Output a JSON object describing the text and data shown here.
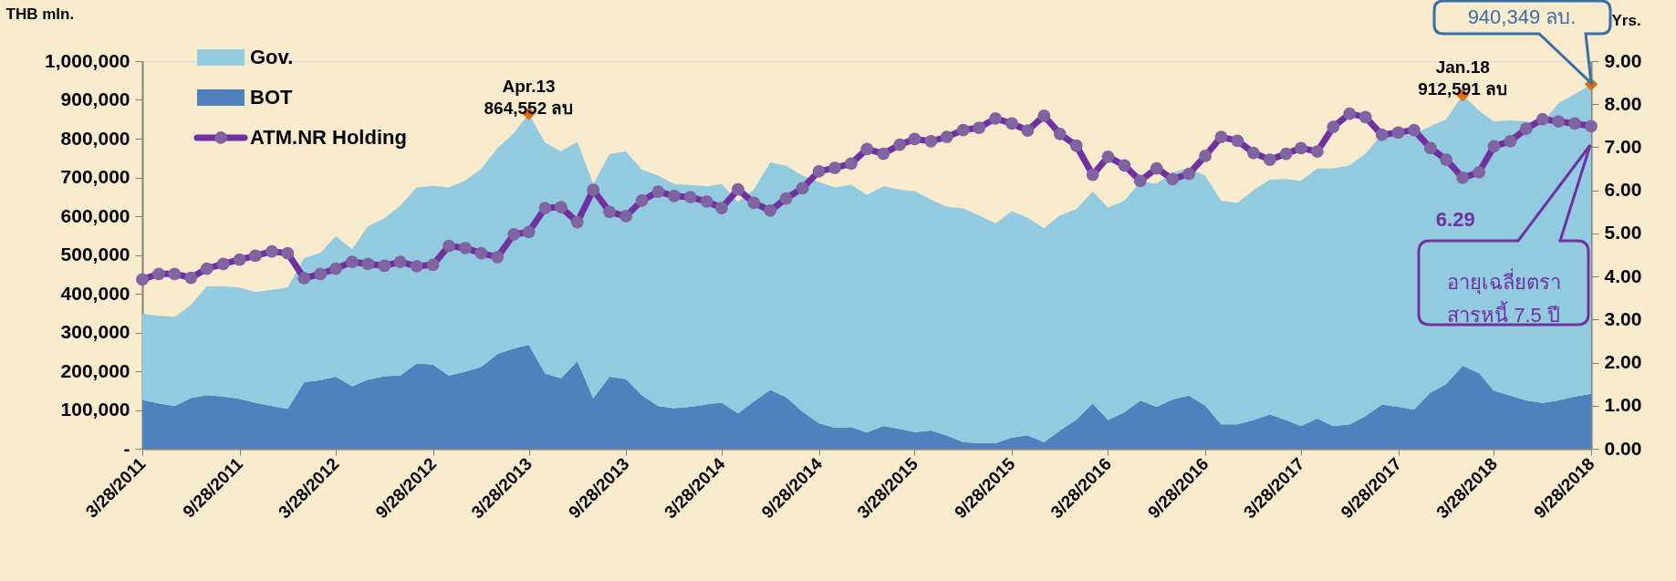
{
  "chart_data": {
    "type": "area",
    "stacked": true,
    "ylabel": "THB mln.",
    "y2label": "Yrs.",
    "x": [
      "2011-03-28",
      "2011-04-28",
      "2011-05-28",
      "2011-06-28",
      "2011-07-28",
      "2011-08-28",
      "2011-09-28",
      "2011-10-28",
      "2011-11-28",
      "2011-12-28",
      "2012-01-28",
      "2012-02-28",
      "2012-03-28",
      "2012-04-28",
      "2012-05-28",
      "2012-06-28",
      "2012-07-28",
      "2012-08-28",
      "2012-09-28",
      "2012-10-28",
      "2012-11-28",
      "2012-12-28",
      "2013-01-28",
      "2013-02-28",
      "2013-03-28",
      "2013-04-28",
      "2013-05-28",
      "2013-06-28",
      "2013-07-28",
      "2013-08-28",
      "2013-09-28",
      "2013-10-28",
      "2013-11-28",
      "2013-12-28",
      "2014-01-28",
      "2014-02-28",
      "2014-03-28",
      "2014-04-28",
      "2014-05-28",
      "2014-06-28",
      "2014-07-28",
      "2014-08-28",
      "2014-09-28",
      "2014-10-28",
      "2014-11-28",
      "2014-12-28",
      "2015-01-28",
      "2015-02-28",
      "2015-03-28",
      "2015-04-28",
      "2015-05-28",
      "2015-06-28",
      "2015-07-28",
      "2015-08-28",
      "2015-09-28",
      "2015-10-28",
      "2015-11-28",
      "2015-12-28",
      "2016-01-28",
      "2016-02-28",
      "2016-03-28",
      "2016-04-28",
      "2016-05-28",
      "2016-06-28",
      "2016-07-28",
      "2016-08-28",
      "2016-09-28",
      "2016-10-28",
      "2016-11-28",
      "2016-12-28",
      "2017-01-28",
      "2017-02-28",
      "2017-03-28",
      "2017-04-28",
      "2017-05-28",
      "2017-06-28",
      "2017-07-28",
      "2017-08-28",
      "2017-09-28",
      "2017-10-28",
      "2017-11-28",
      "2017-12-28",
      "2018-01-28",
      "2018-02-28",
      "2018-03-28",
      "2018-04-28",
      "2018-05-28",
      "2018-06-28",
      "2018-07-28",
      "2018-08-28",
      "2018-09-28"
    ],
    "series": [
      {
        "name": "BOT",
        "color": "#4f81bd",
        "values": [
          126000,
          117000,
          110000,
          131000,
          138000,
          135000,
          129000,
          119000,
          110000,
          103000,
          171000,
          177000,
          186000,
          161000,
          178000,
          187000,
          189000,
          220000,
          217000,
          189000,
          199000,
          211000,
          245000,
          259000,
          268000,
          194000,
          182000,
          226000,
          130000,
          186000,
          180000,
          138000,
          110000,
          105000,
          108000,
          115000,
          119000,
          91000,
          122000,
          152000,
          133000,
          96000,
          66000,
          54000,
          56000,
          42000,
          59000,
          51000,
          43000,
          47000,
          34000,
          17000,
          14000,
          14000,
          29000,
          34000,
          17000,
          47000,
          75000,
          117000,
          74000,
          94000,
          124000,
          108000,
          127000,
          137000,
          111000,
          63000,
          63000,
          74000,
          88000,
          74000,
          58000,
          78000,
          58000,
          63000,
          84000,
          114000,
          108000,
          101000,
          145000,
          167000,
          214000,
          195000,
          150000,
          137000,
          125000,
          118000,
          125000,
          135000,
          142000
        ]
      },
      {
        "name": "Gov.",
        "color": "#92cbdf",
        "values": [
          222000,
          226000,
          230000,
          240000,
          281000,
          284000,
          287000,
          285000,
          300000,
          313000,
          321000,
          329000,
          362000,
          354000,
          396000,
          408000,
          438000,
          454000,
          461000,
          485000,
          493000,
          511000,
          531000,
          555000,
          597000,
          596000,
          585000,
          566000,
          553000,
          574000,
          587000,
          582000,
          595000,
          578000,
          572000,
          562000,
          564000,
          546000,
          547000,
          587000,
          597000,
          609000,
          622000,
          620000,
          625000,
          613000,
          618000,
          618000,
          621000,
          596000,
          590000,
          603000,
          588000,
          567000,
          584000,
          562000,
          552000,
          555000,
          543000,
          547000,
          548000,
          546000,
          565000,
          576000,
          586000,
          588000,
          593000,
          577000,
          571000,
          593000,
          606000,
          622000,
          633000,
          645000,
          665000,
          668000,
          677000,
          696000,
          699000,
          711000,
          687000,
          683000,
          699000,
          677000,
          694000,
          710000,
          719000,
          722000,
          766000,
          780000,
          798000
        ]
      },
      {
        "name": "ATM.NR Holding",
        "type": "line",
        "axis": "y2",
        "color": "#7030a0",
        "marker": "circle",
        "line_style": "solid",
        "values": [
          3.93,
          4.06,
          4.06,
          3.97,
          4.18,
          4.29,
          4.39,
          4.48,
          4.58,
          4.54,
          3.96,
          4.06,
          4.18,
          4.34,
          4.29,
          4.25,
          4.34,
          4.24,
          4.27,
          4.71,
          4.66,
          4.54,
          4.45,
          4.98,
          5.03,
          5.59,
          5.61,
          5.26,
          6.01,
          5.5,
          5.4,
          5.76,
          5.97,
          5.87,
          5.84,
          5.74,
          5.59,
          6.02,
          5.71,
          5.53,
          5.81,
          6.05,
          6.44,
          6.52,
          6.62,
          6.96,
          6.85,
          7.06,
          7.19,
          7.14,
          7.24,
          7.4,
          7.45,
          7.67,
          7.55,
          7.39,
          7.73,
          7.31,
          7.04,
          6.36,
          6.78,
          6.58,
          6.22,
          6.51,
          6.26,
          6.38,
          6.8,
          7.24,
          7.15,
          6.87,
          6.71,
          6.85,
          6.98,
          6.9,
          7.47,
          7.78,
          7.7,
          7.29,
          7.34,
          7.4,
          6.98,
          6.71,
          6.29,
          6.42,
          7.02,
          7.14,
          7.43,
          7.65,
          7.6,
          7.55,
          7.49
        ],
        "value_labels": [
          null,
          null,
          null,
          null,
          null,
          null,
          null,
          null,
          null,
          null,
          null,
          null,
          null,
          null,
          null,
          null,
          null,
          null,
          null,
          null,
          null,
          null,
          null,
          null,
          null,
          null,
          null,
          null,
          null,
          null,
          null,
          null,
          null,
          null,
          null,
          null,
          null,
          null,
          null,
          null,
          null,
          null,
          null,
          null,
          null,
          null,
          null,
          null,
          null,
          null,
          null,
          null,
          null,
          null,
          null,
          null,
          null,
          null,
          null,
          null,
          null,
          null,
          null,
          null,
          null,
          null,
          null,
          null,
          null,
          null,
          null,
          null,
          null,
          null,
          null,
          null,
          null,
          null,
          null,
          null,
          null,
          null,
          "6.29",
          null,
          null,
          null,
          null,
          null,
          null,
          null,
          null
        ]
      }
    ],
    "xlim": [
      "2011-03-28",
      "2018-09-28"
    ],
    "xticks": [
      {
        "value": "2011-03-28",
        "label": "3/28/2011"
      },
      {
        "value": "2011-09-28",
        "label": "9/28/2011"
      },
      {
        "value": "2012-03-28",
        "label": "3/28/2012"
      },
      {
        "value": "2012-09-28",
        "label": "9/28/2012"
      },
      {
        "value": "2013-03-28",
        "label": "3/28/2013"
      },
      {
        "value": "2013-09-28",
        "label": "9/28/2013"
      },
      {
        "value": "2014-03-28",
        "label": "3/28/2014"
      },
      {
        "value": "2014-09-28",
        "label": "9/28/2014"
      },
      {
        "value": "2015-03-28",
        "label": "3/28/2015"
      },
      {
        "value": "2015-09-28",
        "label": "9/28/2015"
      },
      {
        "value": "2016-03-28",
        "label": "3/28/2016"
      },
      {
        "value": "2016-09-28",
        "label": "9/28/2016"
      },
      {
        "value": "2017-03-28",
        "label": "3/28/2017"
      },
      {
        "value": "2017-09-28",
        "label": "9/28/2017"
      },
      {
        "value": "2018-03-28",
        "label": "3/28/2018"
      },
      {
        "value": "2018-09-28",
        "label": "9/28/2018"
      }
    ],
    "ylim": [
      0,
      1000000
    ],
    "yticks": [
      {
        "value": 0,
        "label": "-"
      },
      {
        "value": 100000,
        "label": "100,000"
      },
      {
        "value": 200000,
        "label": "200,000"
      },
      {
        "value": 300000,
        "label": "300,000"
      },
      {
        "value": 400000,
        "label": "400,000"
      },
      {
        "value": 500000,
        "label": "500,000"
      },
      {
        "value": 600000,
        "label": "600,000"
      },
      {
        "value": 700000,
        "label": "700,000"
      },
      {
        "value": 800000,
        "label": "800,000"
      },
      {
        "value": 900000,
        "label": "900,000"
      },
      {
        "value": 1000000,
        "label": "1,000,000"
      }
    ],
    "y2lim": [
      0,
      9
    ],
    "y2ticks": [
      {
        "value": 0,
        "label": "0.00"
      },
      {
        "value": 1,
        "label": "1.00"
      },
      {
        "value": 2,
        "label": "2.00"
      },
      {
        "value": 3,
        "label": "3.00"
      },
      {
        "value": 4,
        "label": "4.00"
      },
      {
        "value": 5,
        "label": "5.00"
      },
      {
        "value": 6,
        "label": "6.00"
      },
      {
        "value": 7,
        "label": "7.00"
      },
      {
        "value": 8,
        "label": "8.00"
      },
      {
        "value": 9,
        "label": "9.00"
      }
    ],
    "legend": "top left",
    "annotations": [
      {
        "text": "Apr.13\n864,552 ลบ",
        "x": "2013-03-28",
        "y": 864552
      },
      {
        "text": "Jan.18\n912,591 ลบ",
        "x": "2018-01-28",
        "y": 912591
      },
      {
        "text": "940,349 ลบ.",
        "x": "2018-09-28",
        "y": 940349
      },
      "อายุเฉลี่ยตรา\nสารหนี้ 7.5 ปี"
    ]
  }
}
